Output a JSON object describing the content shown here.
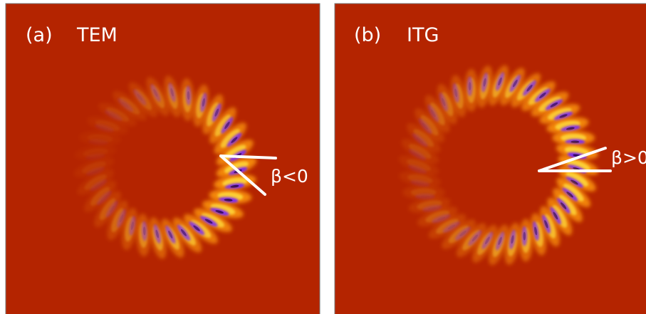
{
  "panels": [
    {
      "label": "(a)",
      "title": "TEM",
      "annotation": "β<0"
    },
    {
      "label": "(b)",
      "title": "ITG",
      "annotation": "β>0"
    }
  ]
}
